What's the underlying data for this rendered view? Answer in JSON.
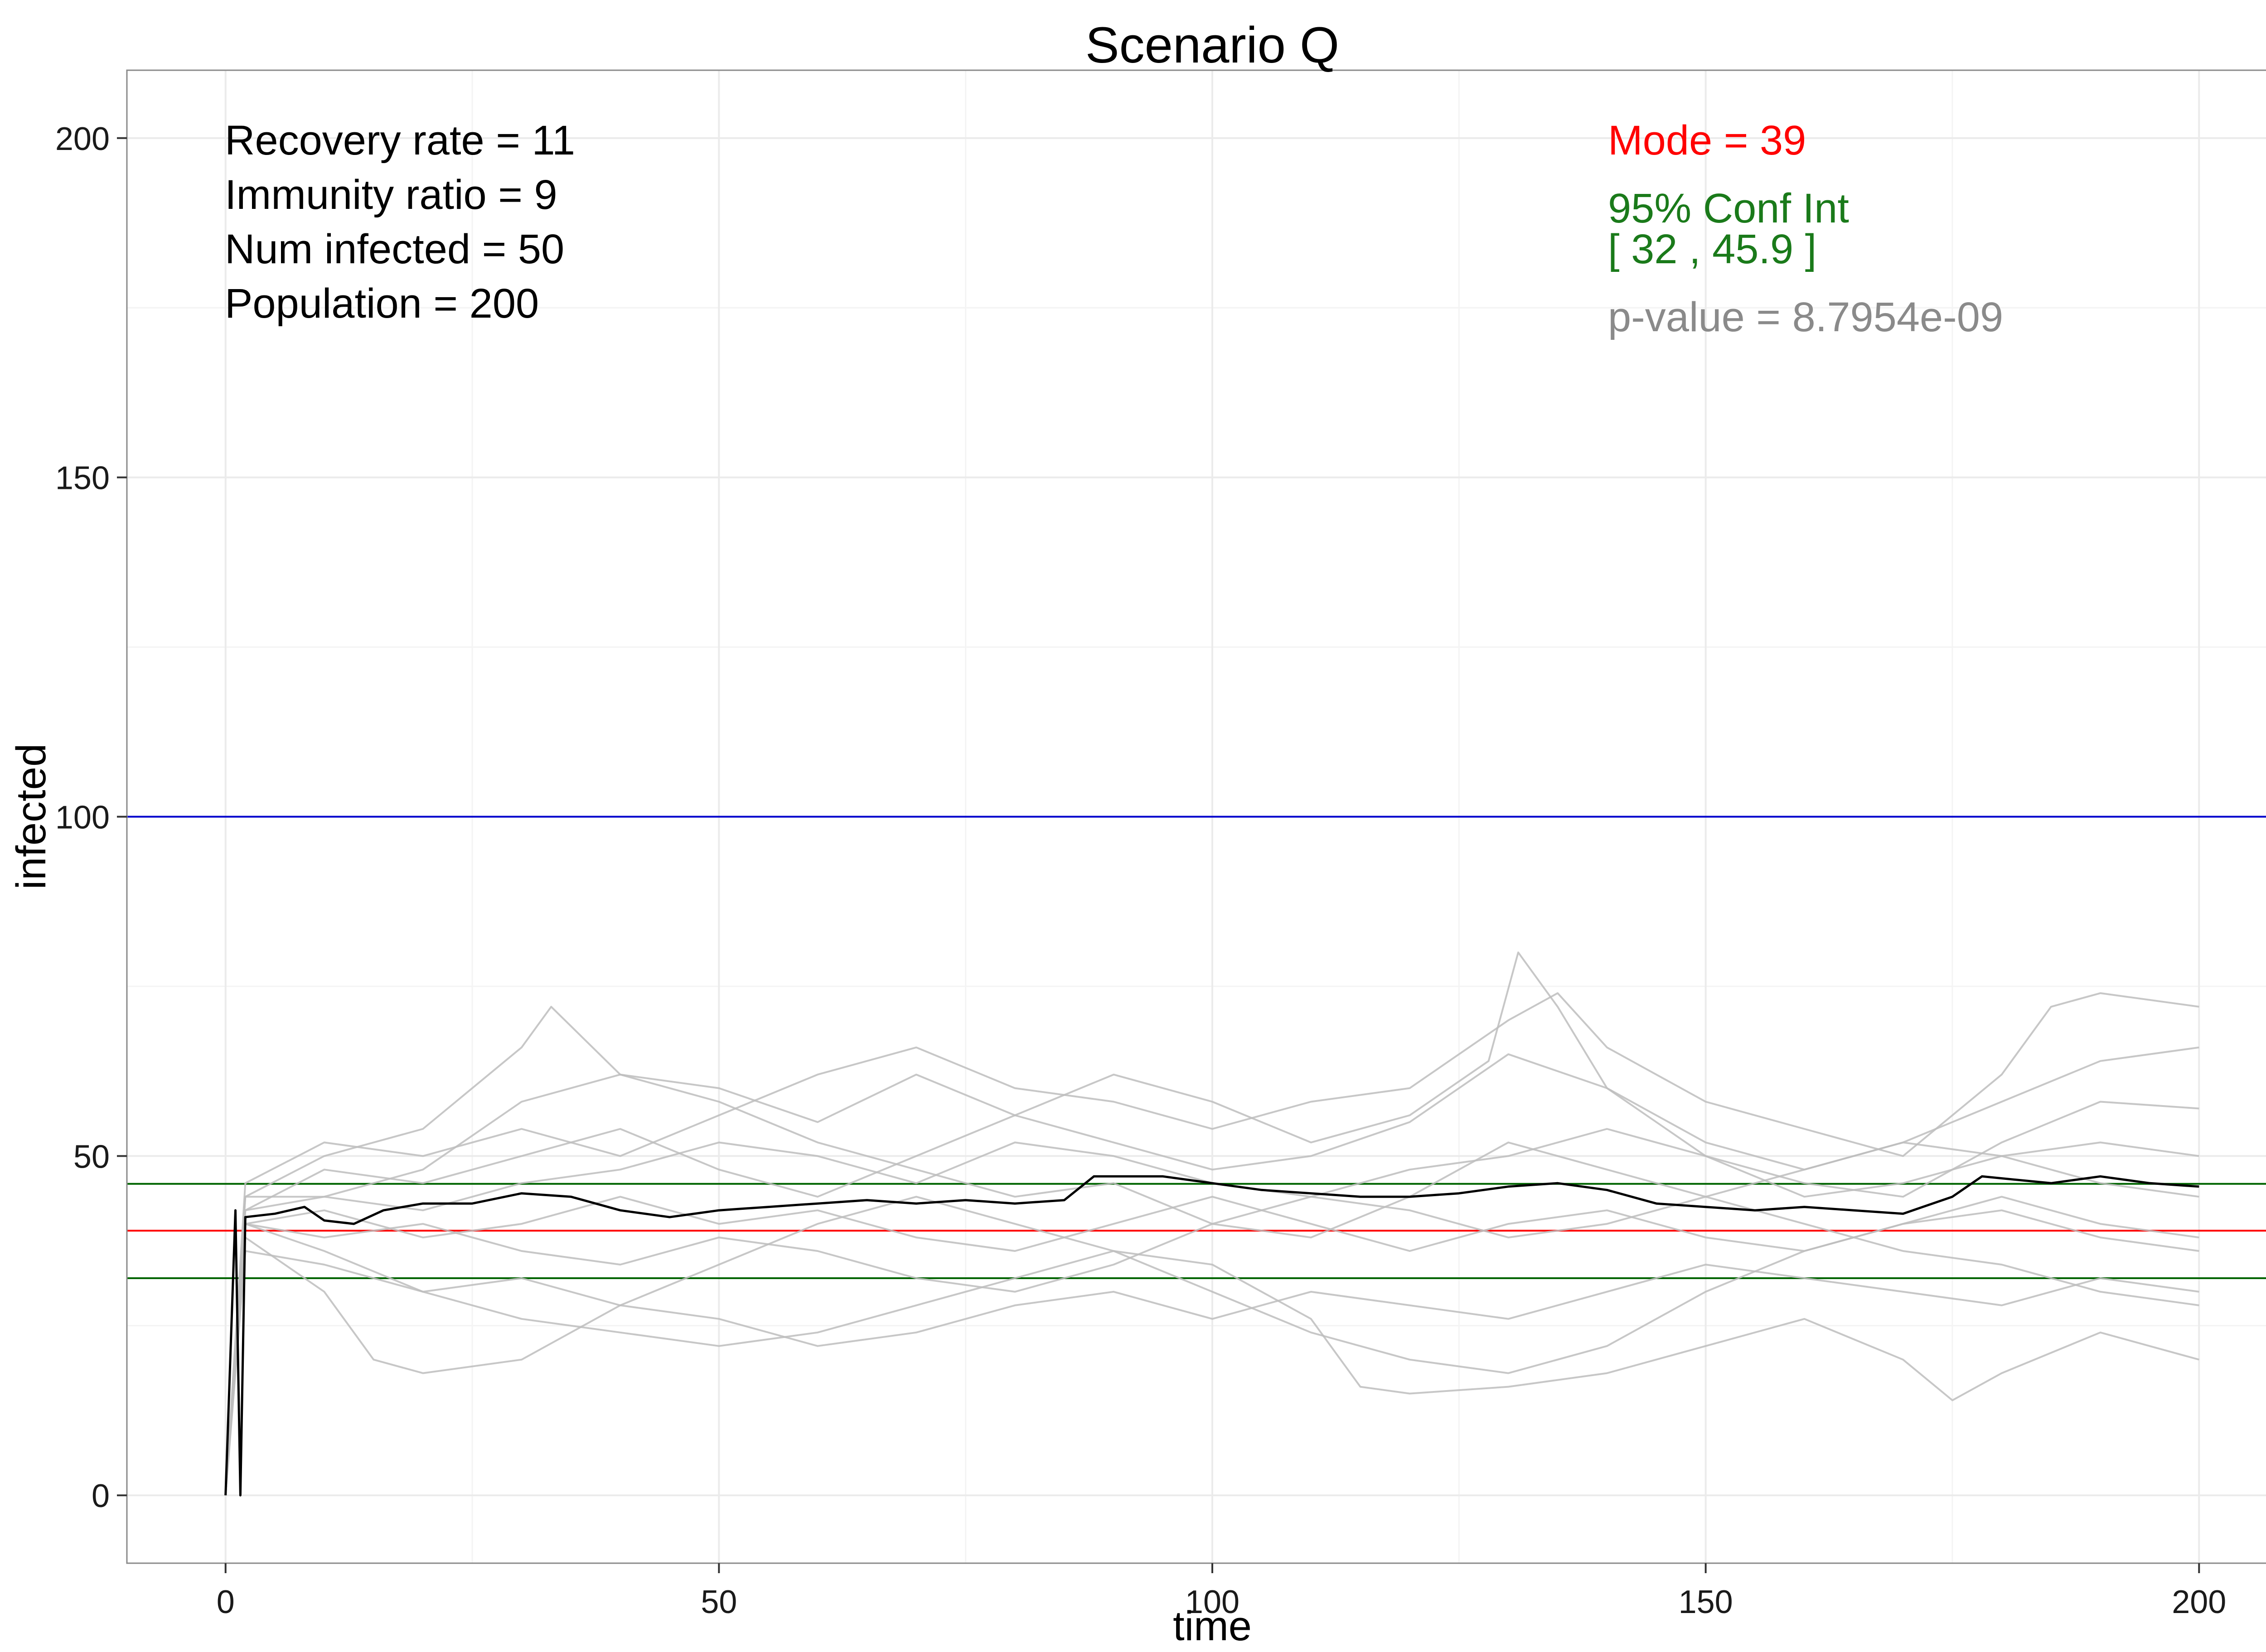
{
  "chart_data": {
    "type": "line",
    "title": "Scenario Q",
    "xlabel": "time",
    "ylabel": "infected",
    "xlim": [
      -10,
      210
    ],
    "ylim": [
      -10,
      210
    ],
    "x_ticks": [
      0,
      50,
      100,
      150,
      200
    ],
    "y_ticks": [
      0,
      50,
      100,
      150,
      200
    ],
    "x_tick_labels": [
      "0",
      "50",
      "100",
      "150",
      "200"
    ],
    "y_tick_labels": [
      "0",
      "50",
      "100",
      "150",
      "200"
    ],
    "grid": true,
    "annotations": {
      "params": [
        "Recovery rate = 11",
        "Immunity ratio = 9",
        "Num infected = 50",
        "Population = 200"
      ],
      "mode_text": "Mode = 39",
      "ci_title": "95% Conf Int",
      "ci_range": "[ 32 , 45.9 ]",
      "pvalue_text": "p-value = 8.7954e-09"
    },
    "reference_lines": [
      {
        "label": "threshold",
        "y": 100,
        "color": "#0000cc"
      },
      {
        "label": "mode",
        "y": 39,
        "color": "#ff0000"
      },
      {
        "label": "ci_upper",
        "y": 45.9,
        "color": "#006400"
      },
      {
        "label": "ci_lower",
        "y": 32,
        "color": "#006400"
      }
    ],
    "mean_series": {
      "color": "#000000",
      "points": [
        [
          0,
          0
        ],
        [
          1,
          42
        ],
        [
          1.5,
          0
        ],
        [
          2,
          41
        ],
        [
          5,
          41.5
        ],
        [
          8,
          42.5
        ],
        [
          10,
          40.5
        ],
        [
          13,
          40
        ],
        [
          16,
          42
        ],
        [
          20,
          43
        ],
        [
          25,
          43
        ],
        [
          30,
          44.5
        ],
        [
          35,
          44
        ],
        [
          40,
          42
        ],
        [
          45,
          41
        ],
        [
          50,
          42
        ],
        [
          55,
          42.5
        ],
        [
          60,
          43
        ],
        [
          65,
          43.5
        ],
        [
          70,
          43
        ],
        [
          75,
          43.5
        ],
        [
          80,
          43
        ],
        [
          85,
          43.5
        ],
        [
          88,
          47
        ],
        [
          95,
          47
        ],
        [
          100,
          46
        ],
        [
          105,
          45
        ],
        [
          110,
          44.5
        ],
        [
          115,
          44
        ],
        [
          120,
          44
        ],
        [
          125,
          44.5
        ],
        [
          130,
          45.5
        ],
        [
          135,
          46
        ],
        [
          140,
          45
        ],
        [
          145,
          43
        ],
        [
          150,
          42.5
        ],
        [
          155,
          42
        ],
        [
          160,
          42.5
        ],
        [
          165,
          42
        ],
        [
          170,
          41.5
        ],
        [
          175,
          44
        ],
        [
          178,
          47
        ],
        [
          185,
          46
        ],
        [
          190,
          47
        ],
        [
          195,
          46
        ],
        [
          200,
          45.5
        ]
      ]
    },
    "sim_series": [
      {
        "name": "",
        "color": "#bdbdbd",
        "points": [
          [
            0,
            0
          ],
          [
            2,
            42
          ],
          [
            10,
            44
          ],
          [
            20,
            48
          ],
          [
            30,
            58
          ],
          [
            40,
            62
          ],
          [
            50,
            60
          ],
          [
            60,
            55
          ],
          [
            70,
            62
          ],
          [
            80,
            56
          ],
          [
            90,
            52
          ],
          [
            100,
            48
          ],
          [
            110,
            50
          ],
          [
            120,
            55
          ],
          [
            130,
            65
          ],
          [
            140,
            60
          ],
          [
            150,
            50
          ],
          [
            160,
            46
          ],
          [
            170,
            44
          ],
          [
            180,
            52
          ],
          [
            190,
            58
          ],
          [
            200,
            57
          ]
        ]
      },
      {
        "name": "",
        "color": "#bdbdbd",
        "points": [
          [
            0,
            0
          ],
          [
            2,
            40
          ],
          [
            10,
            36
          ],
          [
            20,
            30
          ],
          [
            30,
            26
          ],
          [
            40,
            24
          ],
          [
            50,
            22
          ],
          [
            60,
            24
          ],
          [
            70,
            28
          ],
          [
            80,
            32
          ],
          [
            90,
            36
          ],
          [
            100,
            30
          ],
          [
            110,
            24
          ],
          [
            120,
            20
          ],
          [
            130,
            18
          ],
          [
            140,
            22
          ],
          [
            150,
            30
          ],
          [
            160,
            36
          ],
          [
            170,
            40
          ],
          [
            180,
            42
          ],
          [
            190,
            38
          ],
          [
            200,
            36
          ]
        ]
      },
      {
        "name": "",
        "color": "#bdbdbd",
        "points": [
          [
            0,
            0
          ],
          [
            2,
            44
          ],
          [
            10,
            50
          ],
          [
            20,
            54
          ],
          [
            30,
            66
          ],
          [
            33,
            72
          ],
          [
            40,
            62
          ],
          [
            50,
            58
          ],
          [
            60,
            52
          ],
          [
            70,
            48
          ],
          [
            80,
            44
          ],
          [
            90,
            46
          ],
          [
            100,
            40
          ],
          [
            110,
            38
          ],
          [
            120,
            44
          ],
          [
            130,
            52
          ],
          [
            140,
            48
          ],
          [
            150,
            44
          ],
          [
            160,
            40
          ],
          [
            170,
            36
          ],
          [
            180,
            34
          ],
          [
            190,
            30
          ],
          [
            200,
            28
          ]
        ]
      },
      {
        "name": "",
        "color": "#bdbdbd",
        "points": [
          [
            0,
            0
          ],
          [
            2,
            38
          ],
          [
            10,
            30
          ],
          [
            15,
            20
          ],
          [
            20,
            18
          ],
          [
            30,
            20
          ],
          [
            40,
            28
          ],
          [
            50,
            34
          ],
          [
            60,
            40
          ],
          [
            70,
            44
          ],
          [
            80,
            40
          ],
          [
            90,
            36
          ],
          [
            100,
            34
          ],
          [
            110,
            26
          ],
          [
            115,
            16
          ],
          [
            120,
            15
          ],
          [
            130,
            16
          ],
          [
            140,
            18
          ],
          [
            150,
            22
          ],
          [
            160,
            26
          ],
          [
            170,
            20
          ],
          [
            175,
            14
          ],
          [
            180,
            18
          ],
          [
            190,
            24
          ],
          [
            200,
            20
          ]
        ]
      },
      {
        "name": "",
        "color": "#bdbdbd",
        "points": [
          [
            0,
            0
          ],
          [
            2,
            46
          ],
          [
            10,
            52
          ],
          [
            20,
            50
          ],
          [
            30,
            54
          ],
          [
            40,
            50
          ],
          [
            50,
            56
          ],
          [
            60,
            62
          ],
          [
            70,
            66
          ],
          [
            80,
            60
          ],
          [
            90,
            58
          ],
          [
            100,
            54
          ],
          [
            110,
            58
          ],
          [
            120,
            60
          ],
          [
            130,
            70
          ],
          [
            135,
            74
          ],
          [
            140,
            66
          ],
          [
            150,
            58
          ],
          [
            160,
            54
          ],
          [
            170,
            50
          ],
          [
            180,
            62
          ],
          [
            185,
            72
          ],
          [
            190,
            74
          ],
          [
            200,
            72
          ]
        ]
      },
      {
        "name": "",
        "color": "#bdbdbd",
        "points": [
          [
            0,
            0
          ],
          [
            2,
            40
          ],
          [
            10,
            38
          ],
          [
            20,
            40
          ],
          [
            30,
            36
          ],
          [
            40,
            34
          ],
          [
            50,
            38
          ],
          [
            60,
            36
          ],
          [
            70,
            32
          ],
          [
            80,
            30
          ],
          [
            90,
            34
          ],
          [
            100,
            40
          ],
          [
            110,
            44
          ],
          [
            120,
            42
          ],
          [
            130,
            38
          ],
          [
            140,
            40
          ],
          [
            150,
            44
          ],
          [
            160,
            48
          ],
          [
            170,
            52
          ],
          [
            180,
            50
          ],
          [
            190,
            46
          ],
          [
            200,
            44
          ]
        ]
      },
      {
        "name": "",
        "color": "#bdbdbd",
        "points": [
          [
            0,
            0
          ],
          [
            2,
            42
          ],
          [
            10,
            48
          ],
          [
            20,
            46
          ],
          [
            30,
            50
          ],
          [
            40,
            54
          ],
          [
            50,
            48
          ],
          [
            60,
            44
          ],
          [
            70,
            50
          ],
          [
            80,
            56
          ],
          [
            90,
            62
          ],
          [
            100,
            58
          ],
          [
            110,
            52
          ],
          [
            120,
            56
          ],
          [
            128,
            64
          ],
          [
            131,
            80
          ],
          [
            135,
            72
          ],
          [
            140,
            60
          ],
          [
            150,
            52
          ],
          [
            160,
            48
          ],
          [
            170,
            52
          ],
          [
            180,
            58
          ],
          [
            190,
            64
          ],
          [
            200,
            66
          ]
        ]
      },
      {
        "name": "",
        "color": "#bdbdbd",
        "points": [
          [
            0,
            0
          ],
          [
            2,
            36
          ],
          [
            10,
            34
          ],
          [
            20,
            30
          ],
          [
            30,
            32
          ],
          [
            40,
            28
          ],
          [
            50,
            26
          ],
          [
            60,
            22
          ],
          [
            70,
            24
          ],
          [
            80,
            28
          ],
          [
            90,
            30
          ],
          [
            100,
            26
          ],
          [
            110,
            30
          ],
          [
            120,
            28
          ],
          [
            130,
            26
          ],
          [
            140,
            30
          ],
          [
            150,
            34
          ],
          [
            160,
            32
          ],
          [
            170,
            30
          ],
          [
            180,
            28
          ],
          [
            190,
            32
          ],
          [
            200,
            30
          ]
        ]
      },
      {
        "name": "",
        "color": "#bdbdbd",
        "points": [
          [
            0,
            0
          ],
          [
            2,
            44
          ],
          [
            10,
            44
          ],
          [
            20,
            42
          ],
          [
            30,
            46
          ],
          [
            40,
            48
          ],
          [
            50,
            52
          ],
          [
            60,
            50
          ],
          [
            70,
            46
          ],
          [
            80,
            52
          ],
          [
            90,
            50
          ],
          [
            100,
            46
          ],
          [
            110,
            44
          ],
          [
            120,
            48
          ],
          [
            130,
            50
          ],
          [
            140,
            54
          ],
          [
            150,
            50
          ],
          [
            160,
            44
          ],
          [
            170,
            46
          ],
          [
            180,
            50
          ],
          [
            190,
            52
          ],
          [
            200,
            50
          ]
        ]
      },
      {
        "name": "",
        "color": "#bdbdbd",
        "points": [
          [
            0,
            0
          ],
          [
            2,
            40
          ],
          [
            10,
            42
          ],
          [
            20,
            38
          ],
          [
            30,
            40
          ],
          [
            40,
            44
          ],
          [
            50,
            40
          ],
          [
            60,
            42
          ],
          [
            70,
            38
          ],
          [
            80,
            36
          ],
          [
            90,
            40
          ],
          [
            100,
            44
          ],
          [
            110,
            40
          ],
          [
            120,
            36
          ],
          [
            130,
            40
          ],
          [
            140,
            42
          ],
          [
            150,
            38
          ],
          [
            160,
            36
          ],
          [
            170,
            40
          ],
          [
            180,
            44
          ],
          [
            190,
            40
          ],
          [
            200,
            38
          ]
        ]
      }
    ]
  }
}
